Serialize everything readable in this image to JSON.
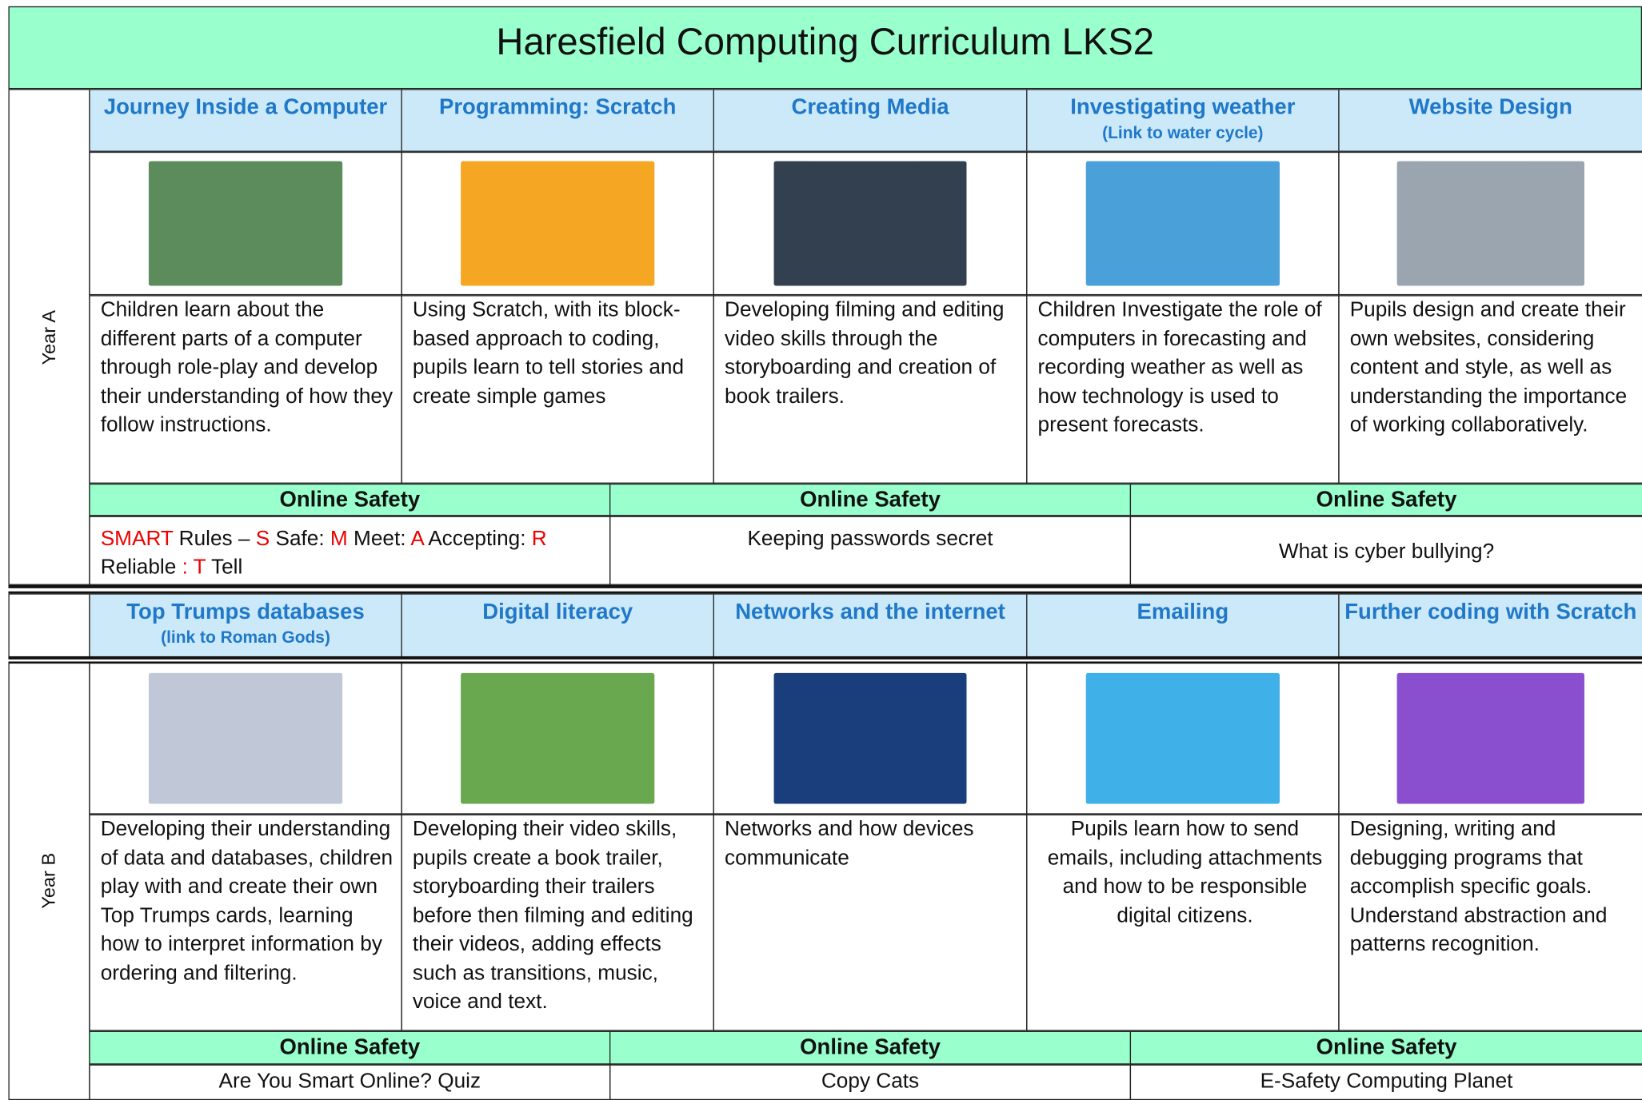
{
  "title": "Haresfield Computing Curriculum LKS2",
  "year_a": {
    "label": "Year A",
    "topics": [
      {
        "title": "Journey Inside a Computer",
        "description": "Children learn about the different parts of a computer through role-play and develop their understanding of how they follow instructions."
      },
      {
        "title": "Programming: Scratch",
        "description": "Using Scratch, with its block-based approach to coding, pupils learn to tell stories and create simple games"
      },
      {
        "title": "Creating Media",
        "description": "Developing filming and editing video skills through the storyboarding and creation of book trailers."
      },
      {
        "title": "Investigating weather",
        "subtitle": "(Link to water cycle)",
        "description": "Children Investigate the role of computers in forecasting and recording weather as well as how technology is used to present forecasts."
      },
      {
        "title": "Website Design",
        "description": "Pupils design and create their own websites, considering content and style, as well as understanding the importance of working collaboratively."
      }
    ],
    "online_safety": [
      {
        "heading": "Online Safety",
        "segments": [
          {
            "text": "SMART",
            "red": true
          },
          {
            "text": " Rules – ",
            "red": false
          },
          {
            "text": "S",
            "red": true
          },
          {
            "text": " Safe: ",
            "red": false
          },
          {
            "text": "M",
            "red": true
          },
          {
            "text": " Meet: ",
            "red": false
          },
          {
            "text": "A",
            "red": true
          },
          {
            "text": " Accepting: ",
            "red": false
          },
          {
            "text": "R",
            "red": true
          },
          {
            "text": " Reliable ",
            "red": false
          },
          {
            "text": ": T",
            "red": true
          },
          {
            "text": " Tell",
            "red": false
          }
        ]
      },
      {
        "heading": "Online Safety",
        "text": "Keeping passwords secret"
      },
      {
        "heading": "Online Safety",
        "text": "What is cyber bullying?"
      }
    ]
  },
  "year_b": {
    "label": "Year B",
    "topics": [
      {
        "title": "Top Trumps databases",
        "subtitle": "(link to Roman Gods)",
        "description": "Developing their understanding of data and databases, children play with and create their own Top Trumps cards, learning how to interpret information by ordering and filtering."
      },
      {
        "title": "Digital literacy",
        "description": "Developing their video skills, pupils create a book trailer, storyboarding their trailers before then filming and editing their videos, adding effects such as transitions, music, voice and text."
      },
      {
        "title": "Networks and the internet",
        "description": "Networks and how devices communicate"
      },
      {
        "title": "Emailing",
        "description": "Pupils learn how to send emails, including attachments and how to be responsible digital citizens."
      },
      {
        "title": "Further coding with  Scratch",
        "description": " Designing, writing and debugging programs that accomplish specific goals. Understand abstraction and patterns recognition."
      }
    ],
    "online_safety": [
      {
        "heading": "Online Safety",
        "text": "Are You Smart Online? Quiz"
      },
      {
        "heading": "Online Safety",
        "text": "Copy Cats"
      },
      {
        "heading": "Online Safety",
        "text": "E-Safety Computing Planet"
      }
    ]
  }
}
